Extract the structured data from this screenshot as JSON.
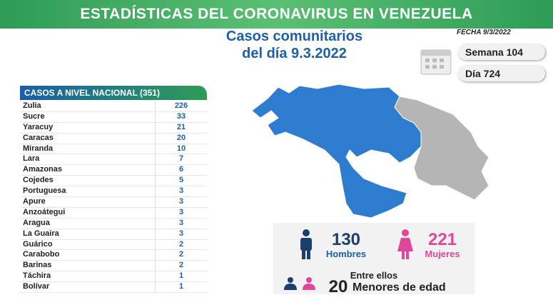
{
  "header": {
    "title": "ESTADÍSTICAS DEL CORONAVIRUS EN VENEZUELA"
  },
  "subtitle": {
    "line1": "Casos comunitarios",
    "line2": "del día 9.3.2022"
  },
  "fecha": "FECHA 9/3/2022",
  "semana": "Semana 104",
  "dia": "Día 724",
  "table": {
    "header": "CASOS A NIVEL NACIONAL (351)",
    "rows": [
      [
        "Zulia",
        226
      ],
      [
        "Sucre",
        33
      ],
      [
        "Yaracuy",
        21
      ],
      [
        "Caracas",
        20
      ],
      [
        "Miranda",
        10
      ],
      [
        "Lara",
        7
      ],
      [
        "Amazonas",
        6
      ],
      [
        "Cojedes",
        5
      ],
      [
        "Portuguesa",
        3
      ],
      [
        "Apure",
        3
      ],
      [
        "Anzoátegui",
        3
      ],
      [
        "Aragua",
        3
      ],
      [
        "La Guaira",
        3
      ],
      [
        "Guárico",
        2
      ],
      [
        "Carabobo",
        2
      ],
      [
        "Barinas",
        2
      ],
      [
        "Táchira",
        1
      ],
      [
        "Bolívar",
        1
      ]
    ]
  },
  "gender": {
    "men": 130,
    "men_label": "Hombres",
    "women": 221,
    "women_label": "Mujeres",
    "between": "Entre ellos",
    "minors": 20,
    "minors_label": "Menores de edad"
  }
}
